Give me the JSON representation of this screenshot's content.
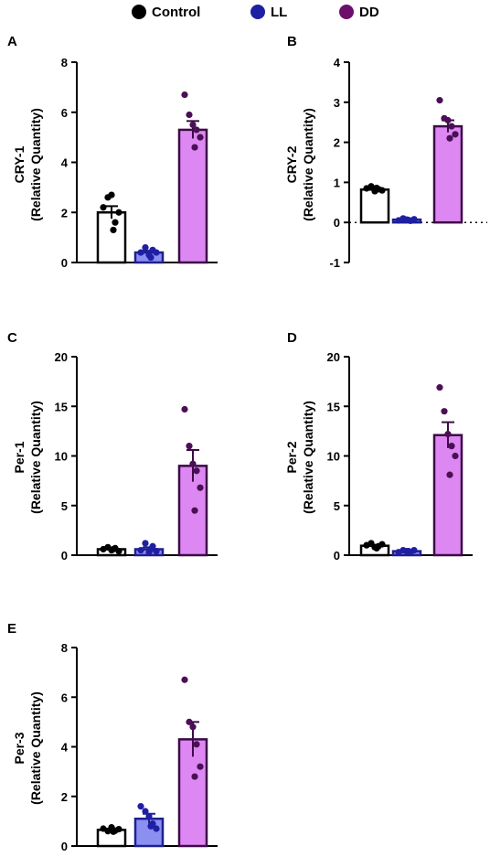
{
  "legend": [
    {
      "name": "Control",
      "color": "#000000"
    },
    {
      "name": "LL",
      "color": "#1f1fa3"
    },
    {
      "name": "DD",
      "color": "#6b0f6b"
    }
  ],
  "group_colors": {
    "Control": {
      "fill": "#ffffff",
      "edge": "#000000",
      "dot": "#000000"
    },
    "LL": {
      "fill": "#8a8ff0",
      "edge": "#1f1f8f",
      "dot": "#1f1fa3"
    },
    "DD": {
      "fill": "#dd88f2",
      "edge": "#3d0a48",
      "dot": "#4a0f55"
    }
  },
  "chart_data": [
    {
      "type": "bar",
      "panel": "A",
      "ylabel_line1": "CRY-1",
      "ylabel_line2": "(Relative Quantity)",
      "categories": [
        "Control",
        "LL",
        "DD"
      ],
      "values": [
        2.0,
        0.4,
        5.3
      ],
      "sem": [
        0.25,
        0.07,
        0.35
      ],
      "points": [
        [
          2.2,
          2.6,
          2.7,
          1.6,
          2.0,
          1.3
        ],
        [
          0.4,
          0.6,
          0.3,
          0.5,
          0.4,
          0.2
        ],
        [
          6.7,
          5.9,
          5.5,
          5.3,
          5.0,
          4.6
        ]
      ],
      "ylim": [
        0,
        8
      ],
      "yticks": [
        0,
        2,
        4,
        6,
        8
      ],
      "zero_line": false
    },
    {
      "type": "bar",
      "panel": "B",
      "ylabel_line1": "CRY-2",
      "ylabel_line2": "(Relative Quantity)",
      "categories": [
        "Control",
        "LL",
        "DD"
      ],
      "values": [
        0.82,
        0.07,
        2.4
      ],
      "sem": [
        0.03,
        0.02,
        0.15
      ],
      "points": [
        [
          0.85,
          0.9,
          0.78,
          0.83,
          0.8,
          0.86
        ],
        [
          0.05,
          0.1,
          0.07,
          0.04,
          0.08,
          0.06
        ],
        [
          3.05,
          2.6,
          2.55,
          2.4,
          2.2,
          2.1
        ]
      ],
      "ylim": [
        -1,
        4
      ],
      "yticks": [
        -1,
        0,
        1,
        2,
        3,
        4
      ],
      "zero_line": true
    },
    {
      "type": "bar",
      "panel": "C",
      "ylabel_line1": "Per-1",
      "ylabel_line2": "(Relative Quantity)",
      "categories": [
        "Control",
        "LL",
        "DD"
      ],
      "values": [
        0.6,
        0.6,
        9.0
      ],
      "sem": [
        0.1,
        0.2,
        1.6
      ],
      "points": [
        [
          0.6,
          0.8,
          0.5,
          0.7,
          0.4,
          0.6
        ],
        [
          0.5,
          1.2,
          0.3,
          0.9,
          0.4,
          0.6
        ],
        [
          14.7,
          11.0,
          9.2,
          8.5,
          6.8,
          4.5
        ]
      ],
      "ylim": [
        0,
        20
      ],
      "yticks": [
        0,
        5,
        10,
        15,
        20
      ],
      "zero_line": false
    },
    {
      "type": "bar",
      "panel": "D",
      "ylabel_line1": "Per-2",
      "ylabel_line2": "(Relative Quantity)",
      "categories": [
        "Control",
        "LL",
        "DD"
      ],
      "values": [
        0.95,
        0.4,
        12.1
      ],
      "sem": [
        0.1,
        0.05,
        1.3
      ],
      "points": [
        [
          1.0,
          1.2,
          0.8,
          0.9,
          1.1,
          0.7
        ],
        [
          0.3,
          0.5,
          0.4,
          0.3,
          0.5,
          0.4
        ],
        [
          16.9,
          14.5,
          12.2,
          11.0,
          10.0,
          8.1
        ]
      ],
      "ylim": [
        0,
        20
      ],
      "yticks": [
        0,
        5,
        10,
        15,
        20
      ],
      "zero_line": false
    },
    {
      "type": "bar",
      "panel": "E",
      "ylabel_line1": "Per-3",
      "ylabel_line2": "(Relative Quantity)",
      "categories": [
        "Control",
        "LL",
        "DD"
      ],
      "values": [
        0.65,
        1.1,
        4.3
      ],
      "sem": [
        0.05,
        0.2,
        0.7
      ],
      "points": [
        [
          0.7,
          0.6,
          0.75,
          0.62,
          0.68,
          0.58
        ],
        [
          1.6,
          1.4,
          1.2,
          0.9,
          0.7,
          0.8
        ],
        [
          6.7,
          5.0,
          4.8,
          4.1,
          3.2,
          2.8
        ]
      ],
      "ylim": [
        0,
        8
      ],
      "yticks": [
        0,
        2,
        4,
        6,
        8
      ],
      "zero_line": false
    }
  ]
}
